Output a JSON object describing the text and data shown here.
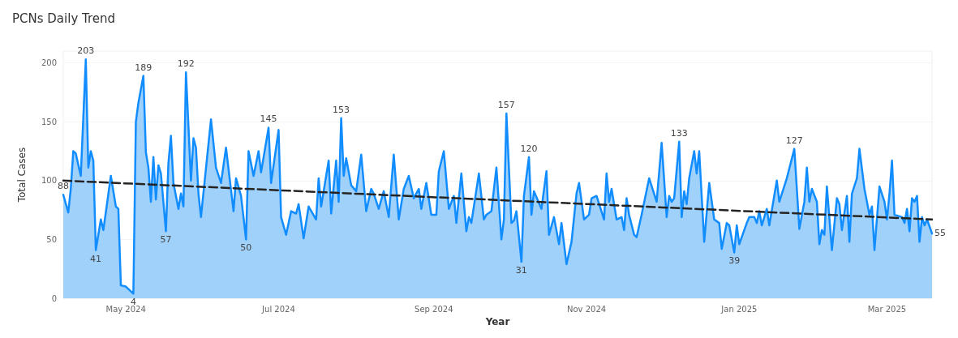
{
  "chart_data": {
    "type": "area",
    "title": "PCNs Daily Trend",
    "xlabel": "Year",
    "ylabel": "Total Cases",
    "xlim": [
      "2024-04-06",
      "2025-03-19"
    ],
    "xticks": [
      {
        "value": "2024-05-01",
        "label": "May 2024"
      },
      {
        "value": "2024-07-01",
        "label": "Jul 2024"
      },
      {
        "value": "2024-09-01",
        "label": "Sep 2024"
      },
      {
        "value": "2024-11-01",
        "label": "Nov 2024"
      },
      {
        "value": "2025-01-01",
        "label": "Jan 2025"
      },
      {
        "value": "2025-03-01",
        "label": "Mar 2025"
      }
    ],
    "ylim": [
      0,
      210
    ],
    "yticks": [
      0,
      50,
      100,
      150,
      200
    ],
    "grid": "y",
    "series": [
      {
        "type": "area",
        "color": "#118dff",
        "x": [
          "2024-04-06",
          "2024-04-08",
          "2024-04-09",
          "2024-04-10",
          "2024-04-11",
          "2024-04-13",
          "2024-04-15",
          "2024-04-16",
          "2024-04-17",
          "2024-04-18",
          "2024-04-19",
          "2024-04-21",
          "2024-04-22",
          "2024-04-23",
          "2024-04-25",
          "2024-04-27",
          "2024-04-28",
          "2024-04-29",
          "2024-05-01",
          "2024-05-04",
          "2024-05-05",
          "2024-05-06",
          "2024-05-08",
          "2024-05-09",
          "2024-05-10",
          "2024-05-11",
          "2024-05-12",
          "2024-05-13",
          "2024-05-14",
          "2024-05-15",
          "2024-05-17",
          "2024-05-18",
          "2024-05-19",
          "2024-05-20",
          "2024-05-22",
          "2024-05-23",
          "2024-05-24",
          "2024-05-25",
          "2024-05-27",
          "2024-05-28",
          "2024-05-29",
          "2024-05-30",
          "2024-05-31",
          "2024-06-04",
          "2024-06-06",
          "2024-06-08",
          "2024-06-10",
          "2024-06-13",
          "2024-06-14",
          "2024-06-16",
          "2024-06-18",
          "2024-06-19",
          "2024-06-21",
          "2024-06-23",
          "2024-06-24",
          "2024-06-27",
          "2024-06-28",
          "2024-07-01",
          "2024-07-02",
          "2024-07-04",
          "2024-07-06",
          "2024-07-08",
          "2024-07-09",
          "2024-07-11",
          "2024-07-13",
          "2024-07-16",
          "2024-07-17",
          "2024-07-18",
          "2024-07-21",
          "2024-07-22",
          "2024-07-24",
          "2024-07-25",
          "2024-07-26",
          "2024-07-27",
          "2024-07-28",
          "2024-07-30",
          "2024-08-01",
          "2024-08-03",
          "2024-08-05",
          "2024-08-07",
          "2024-08-08",
          "2024-08-10",
          "2024-08-12",
          "2024-08-14",
          "2024-08-16",
          "2024-08-18",
          "2024-08-20",
          "2024-08-22",
          "2024-08-24",
          "2024-08-26",
          "2024-08-27",
          "2024-08-29",
          "2024-08-31",
          "2024-09-02",
          "2024-09-03",
          "2024-09-05",
          "2024-09-07",
          "2024-09-09",
          "2024-09-10",
          "2024-09-12",
          "2024-09-14",
          "2024-09-15",
          "2024-09-16",
          "2024-09-19",
          "2024-09-21",
          "2024-09-22",
          "2024-09-24",
          "2024-09-26",
          "2024-09-28",
          "2024-09-29",
          "2024-09-30",
          "2024-10-02",
          "2024-10-03",
          "2024-10-04",
          "2024-10-06",
          "2024-10-07",
          "2024-10-09",
          "2024-10-10",
          "2024-10-11",
          "2024-10-14",
          "2024-10-16",
          "2024-10-17",
          "2024-10-19",
          "2024-10-21",
          "2024-10-22",
          "2024-10-24",
          "2024-10-26",
          "2024-10-28",
          "2024-10-29",
          "2024-10-31",
          "2024-11-02",
          "2024-11-03",
          "2024-11-05",
          "2024-11-08",
          "2024-11-09",
          "2024-11-10",
          "2024-11-11",
          "2024-11-13",
          "2024-11-15",
          "2024-11-16",
          "2024-11-17",
          "2024-11-18",
          "2024-11-20",
          "2024-11-21",
          "2024-11-23",
          "2024-11-26",
          "2024-11-29",
          "2024-12-01",
          "2024-12-03",
          "2024-12-04",
          "2024-12-05",
          "2024-12-06",
          "2024-12-08",
          "2024-12-09",
          "2024-12-10",
          "2024-12-11",
          "2024-12-12",
          "2024-12-14",
          "2024-12-15",
          "2024-12-16",
          "2024-12-18",
          "2024-12-20",
          "2024-12-22",
          "2024-12-24",
          "2024-12-25",
          "2024-12-27",
          "2024-12-28",
          "2024-12-30",
          "2024-12-31",
          "2025-01-01",
          "2025-01-04",
          "2025-01-05",
          "2025-01-07",
          "2025-01-08",
          "2025-01-09",
          "2025-01-10",
          "2025-01-12",
          "2025-01-13",
          "2025-01-16",
          "2025-01-17",
          "2025-01-20",
          "2025-01-23",
          "2025-01-25",
          "2025-01-27",
          "2025-01-28",
          "2025-01-29",
          "2025-01-30",
          "2025-02-01",
          "2025-02-02",
          "2025-02-03",
          "2025-02-04",
          "2025-02-05",
          "2025-02-07",
          "2025-02-09",
          "2025-02-10",
          "2025-02-11",
          "2025-02-13",
          "2025-02-14",
          "2025-02-15",
          "2025-02-17",
          "2025-02-18",
          "2025-02-20",
          "2025-02-22",
          "2025-02-23",
          "2025-02-24",
          "2025-02-26",
          "2025-02-28",
          "2025-03-01",
          "2025-03-02",
          "2025-03-03",
          "2025-03-04",
          "2025-03-07",
          "2025-03-08",
          "2025-03-09",
          "2025-03-10",
          "2025-03-11",
          "2025-03-12",
          "2025-03-13",
          "2025-03-14",
          "2025-03-15",
          "2025-03-16",
          "2025-03-17",
          "2025-03-19"
        ],
        "values": [
          88,
          73,
          93,
          125,
          123,
          104,
          203,
          111,
          125,
          117,
          41,
          67,
          58,
          73,
          104,
          78,
          76,
          11,
          10,
          4,
          150,
          166,
          189,
          124,
          111,
          82,
          120,
          84,
          113,
          106,
          57,
          115,
          138,
          98,
          76,
          89,
          78,
          192,
          100,
          136,
          128,
          89,
          69,
          152,
          111,
          98,
          128,
          74,
          102,
          87,
          50,
          125,
          104,
          125,
          107,
          145,
          98,
          143,
          69,
          54,
          74,
          72,
          80,
          51,
          78,
          67,
          102,
          78,
          117,
          72,
          117,
          82,
          153,
          104,
          119,
          96,
          91,
          122,
          74,
          93,
          89,
          76,
          91,
          69,
          122,
          67,
          93,
          104,
          85,
          93,
          76,
          98,
          71,
          71,
          108,
          125,
          76,
          87,
          64,
          106,
          57,
          69,
          64,
          106,
          67,
          71,
          74,
          111,
          50,
          67,
          157,
          64,
          66,
          74,
          31,
          87,
          120,
          71,
          91,
          76,
          108,
          54,
          69,
          46,
          64,
          29,
          48,
          89,
          98,
          67,
          71,
          85,
          87,
          67,
          106,
          82,
          93,
          67,
          69,
          58,
          85,
          71,
          54,
          52,
          71,
          102,
          82,
          132,
          69,
          87,
          82,
          85,
          133,
          69,
          91,
          80,
          102,
          125,
          106,
          125,
          48,
          98,
          67,
          64,
          42,
          64,
          62,
          39,
          62,
          46,
          64,
          69,
          69,
          64,
          74,
          62,
          76,
          62,
          100,
          82,
          102,
          127,
          59,
          82,
          111,
          82,
          93,
          82,
          46,
          58,
          54,
          95,
          41,
          85,
          80,
          58,
          87,
          48,
          89,
          102,
          127,
          93,
          71,
          78,
          41,
          95,
          82,
          67,
          89,
          117,
          71,
          69,
          64,
          76,
          57,
          85,
          82,
          87,
          48,
          69,
          62,
          67,
          55
        ],
        "value_labels": [
          "88",
          null,
          null,
          null,
          null,
          null,
          "203",
          null,
          null,
          null,
          "41",
          null,
          null,
          null,
          null,
          null,
          null,
          null,
          null,
          "4",
          null,
          null,
          "189",
          null,
          null,
          null,
          null,
          null,
          null,
          null,
          "57",
          null,
          null,
          null,
          null,
          null,
          null,
          "192",
          null,
          null,
          null,
          null,
          null,
          null,
          null,
          null,
          null,
          null,
          null,
          null,
          "50",
          null,
          null,
          null,
          null,
          "145",
          null,
          null,
          null,
          null,
          null,
          null,
          null,
          null,
          null,
          null,
          null,
          null,
          null,
          null,
          null,
          null,
          "153",
          null,
          null,
          null,
          null,
          null,
          null,
          null,
          null,
          null,
          null,
          null,
          null,
          null,
          null,
          null,
          null,
          null,
          null,
          null,
          null,
          null,
          null,
          null,
          null,
          null,
          null,
          null,
          null,
          null,
          null,
          null,
          null,
          null,
          null,
          null,
          null,
          null,
          "157",
          null,
          null,
          null,
          "31",
          null,
          "120",
          null,
          null,
          null,
          null,
          null,
          null,
          null,
          null,
          null,
          null,
          null,
          null,
          null,
          null,
          null,
          null,
          null,
          null,
          null,
          null,
          null,
          null,
          null,
          null,
          null,
          null,
          null,
          null,
          null,
          null,
          null,
          null,
          null,
          null,
          null,
          "133",
          null,
          null,
          null,
          null,
          null,
          null,
          null,
          null,
          null,
          null,
          null,
          null,
          null,
          null,
          "39",
          null,
          null,
          null,
          null,
          null,
          null,
          null,
          null,
          null,
          null,
          null,
          null,
          null,
          "127",
          null,
          null,
          null,
          null,
          null,
          null,
          null,
          null,
          null,
          null,
          null,
          null,
          null,
          null,
          null,
          null,
          null,
          null,
          null,
          null,
          null,
          null,
          null,
          null,
          null,
          null,
          null,
          null,
          null,
          null,
          null,
          null,
          null,
          null,
          null,
          null,
          null,
          null,
          null,
          null,
          "55"
        ]
      },
      {
        "type": "line",
        "color": "#252423",
        "line_style": "dashed",
        "x": [
          "2024-04-06",
          "2025-03-19"
        ],
        "values": [
          100,
          67
        ]
      }
    ]
  }
}
